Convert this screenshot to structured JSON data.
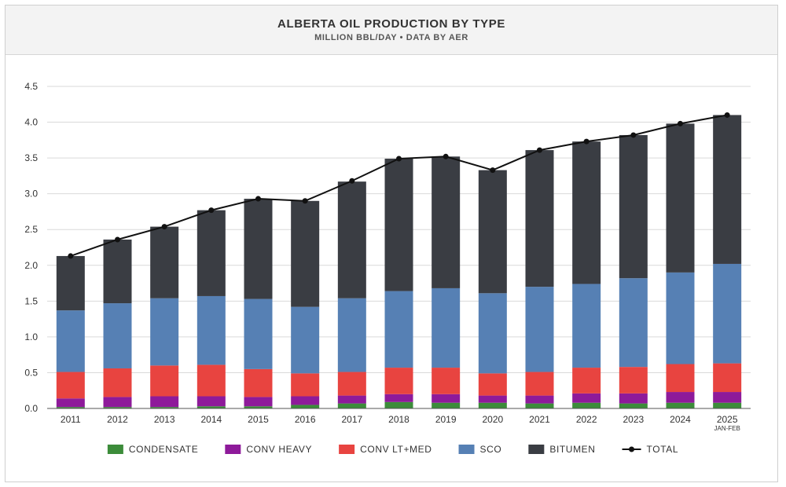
{
  "header": {
    "title": "ALBERTA OIL PRODUCTION BY TYPE",
    "subtitle": "MILLION BBL/DAY • DATA BY AER"
  },
  "chart_data": {
    "type": "bar",
    "stacked": true,
    "categories": [
      "2011",
      "2012",
      "2013",
      "2014",
      "2015",
      "2016",
      "2017",
      "2018",
      "2019",
      "2020",
      "2021",
      "2022",
      "2023",
      "2024",
      "2025"
    ],
    "category_notes": {
      "2025": "JAN-FEB"
    },
    "ylim": [
      0,
      4.5
    ],
    "yticks": [
      "0.0",
      "0.5",
      "1.0",
      "1.5",
      "2.0",
      "2.5",
      "3.0",
      "3.5",
      "4.0",
      "4.5"
    ],
    "grid": true,
    "legend_position": "bottom",
    "series": [
      {
        "name": "CONDENSATE",
        "color": "#3c8c3a",
        "values": [
          0.02,
          0.02,
          0.02,
          0.03,
          0.03,
          0.05,
          0.07,
          0.09,
          0.08,
          0.08,
          0.07,
          0.08,
          0.07,
          0.08,
          0.08
        ]
      },
      {
        "name": "CONV HEAVY",
        "color": "#8e1a9a",
        "values": [
          0.12,
          0.14,
          0.15,
          0.14,
          0.13,
          0.12,
          0.11,
          0.11,
          0.12,
          0.1,
          0.11,
          0.13,
          0.14,
          0.15,
          0.15
        ]
      },
      {
        "name": "CONV LT+MED",
        "color": "#e84440",
        "values": [
          0.37,
          0.4,
          0.43,
          0.44,
          0.39,
          0.32,
          0.33,
          0.37,
          0.37,
          0.31,
          0.33,
          0.36,
          0.37,
          0.39,
          0.4
        ]
      },
      {
        "name": "SCO",
        "color": "#5680b4",
        "values": [
          0.86,
          0.91,
          0.94,
          0.96,
          0.98,
          0.93,
          1.03,
          1.07,
          1.11,
          1.12,
          1.19,
          1.17,
          1.24,
          1.28,
          1.39
        ]
      },
      {
        "name": "BITUMEN",
        "color": "#3a3d43",
        "values": [
          0.76,
          0.89,
          1.0,
          1.2,
          1.4,
          1.48,
          1.63,
          1.85,
          1.84,
          1.72,
          1.91,
          1.99,
          2.0,
          2.08,
          2.08
        ]
      }
    ],
    "line_series": {
      "name": "TOTAL",
      "color": "#111111",
      "values": [
        2.13,
        2.36,
        2.54,
        2.77,
        2.93,
        2.9,
        3.18,
        3.49,
        3.52,
        3.33,
        3.61,
        3.73,
        3.82,
        3.98,
        4.1
      ]
    }
  }
}
